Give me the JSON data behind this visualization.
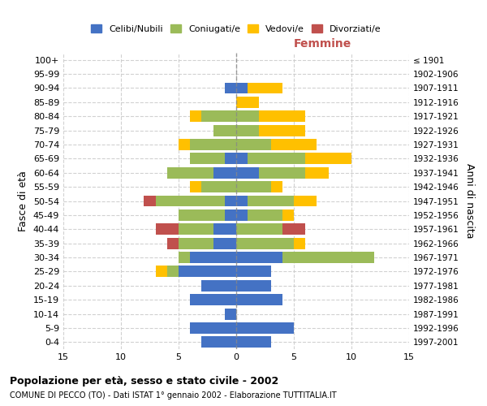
{
  "age_groups": [
    "100+",
    "95-99",
    "90-94",
    "85-89",
    "80-84",
    "75-79",
    "70-74",
    "65-69",
    "60-64",
    "55-59",
    "50-54",
    "45-49",
    "40-44",
    "35-39",
    "30-34",
    "25-29",
    "20-24",
    "15-19",
    "10-14",
    "5-9",
    "0-4"
  ],
  "birth_years": [
    "≤ 1901",
    "1902-1906",
    "1907-1911",
    "1912-1916",
    "1917-1921",
    "1922-1926",
    "1927-1931",
    "1932-1936",
    "1937-1941",
    "1942-1946",
    "1947-1951",
    "1952-1956",
    "1957-1961",
    "1962-1966",
    "1967-1971",
    "1972-1976",
    "1977-1981",
    "1982-1986",
    "1987-1991",
    "1992-1996",
    "1997-2001"
  ],
  "males": {
    "celibe": [
      0,
      0,
      1,
      0,
      0,
      0,
      0,
      1,
      2,
      0,
      1,
      1,
      2,
      2,
      4,
      5,
      3,
      4,
      1,
      4,
      3
    ],
    "coniugato": [
      0,
      0,
      0,
      0,
      3,
      2,
      4,
      3,
      4,
      3,
      6,
      4,
      3,
      3,
      1,
      1,
      0,
      0,
      0,
      0,
      0
    ],
    "vedovo": [
      0,
      0,
      0,
      0,
      1,
      0,
      1,
      0,
      0,
      1,
      0,
      0,
      0,
      0,
      0,
      1,
      0,
      0,
      0,
      0,
      0
    ],
    "divorziato": [
      0,
      0,
      0,
      0,
      0,
      0,
      0,
      0,
      0,
      0,
      1,
      0,
      2,
      1,
      0,
      0,
      0,
      0,
      0,
      0,
      0
    ]
  },
  "females": {
    "celibe": [
      0,
      0,
      1,
      0,
      0,
      0,
      0,
      1,
      2,
      0,
      1,
      1,
      0,
      0,
      4,
      3,
      3,
      4,
      0,
      5,
      3
    ],
    "coniugato": [
      0,
      0,
      0,
      0,
      2,
      2,
      3,
      5,
      4,
      3,
      4,
      3,
      4,
      5,
      8,
      0,
      0,
      0,
      0,
      0,
      0
    ],
    "vedovo": [
      0,
      0,
      3,
      2,
      4,
      4,
      4,
      4,
      2,
      1,
      2,
      1,
      0,
      1,
      0,
      0,
      0,
      0,
      0,
      0,
      0
    ],
    "divorziato": [
      0,
      0,
      0,
      0,
      0,
      0,
      0,
      0,
      0,
      0,
      0,
      0,
      2,
      0,
      0,
      0,
      0,
      0,
      0,
      0,
      0
    ]
  },
  "colors": {
    "celibe": "#4472c4",
    "coniugato": "#9bbb59",
    "vedovo": "#ffc000",
    "divorziato": "#c0504d"
  },
  "xlim": 15,
  "title": "Popolazione per età, sesso e stato civile - 2002",
  "subtitle": "COMUNE DI PECCO (TO) - Dati ISTAT 1° gennaio 2002 - Elaborazione TUTTITALIA.IT",
  "ylabel_left": "Fasce di età",
  "ylabel_right": "Anni di nascita",
  "xlabel_right": "Femmine",
  "legend_labels": [
    "Celibi/Nubili",
    "Coniugati/e",
    "Vedovi/e",
    "Divorziati/e"
  ],
  "bg_color": "#ffffff",
  "grid_color": "#cccccc",
  "femmine_color": "#c0504d"
}
